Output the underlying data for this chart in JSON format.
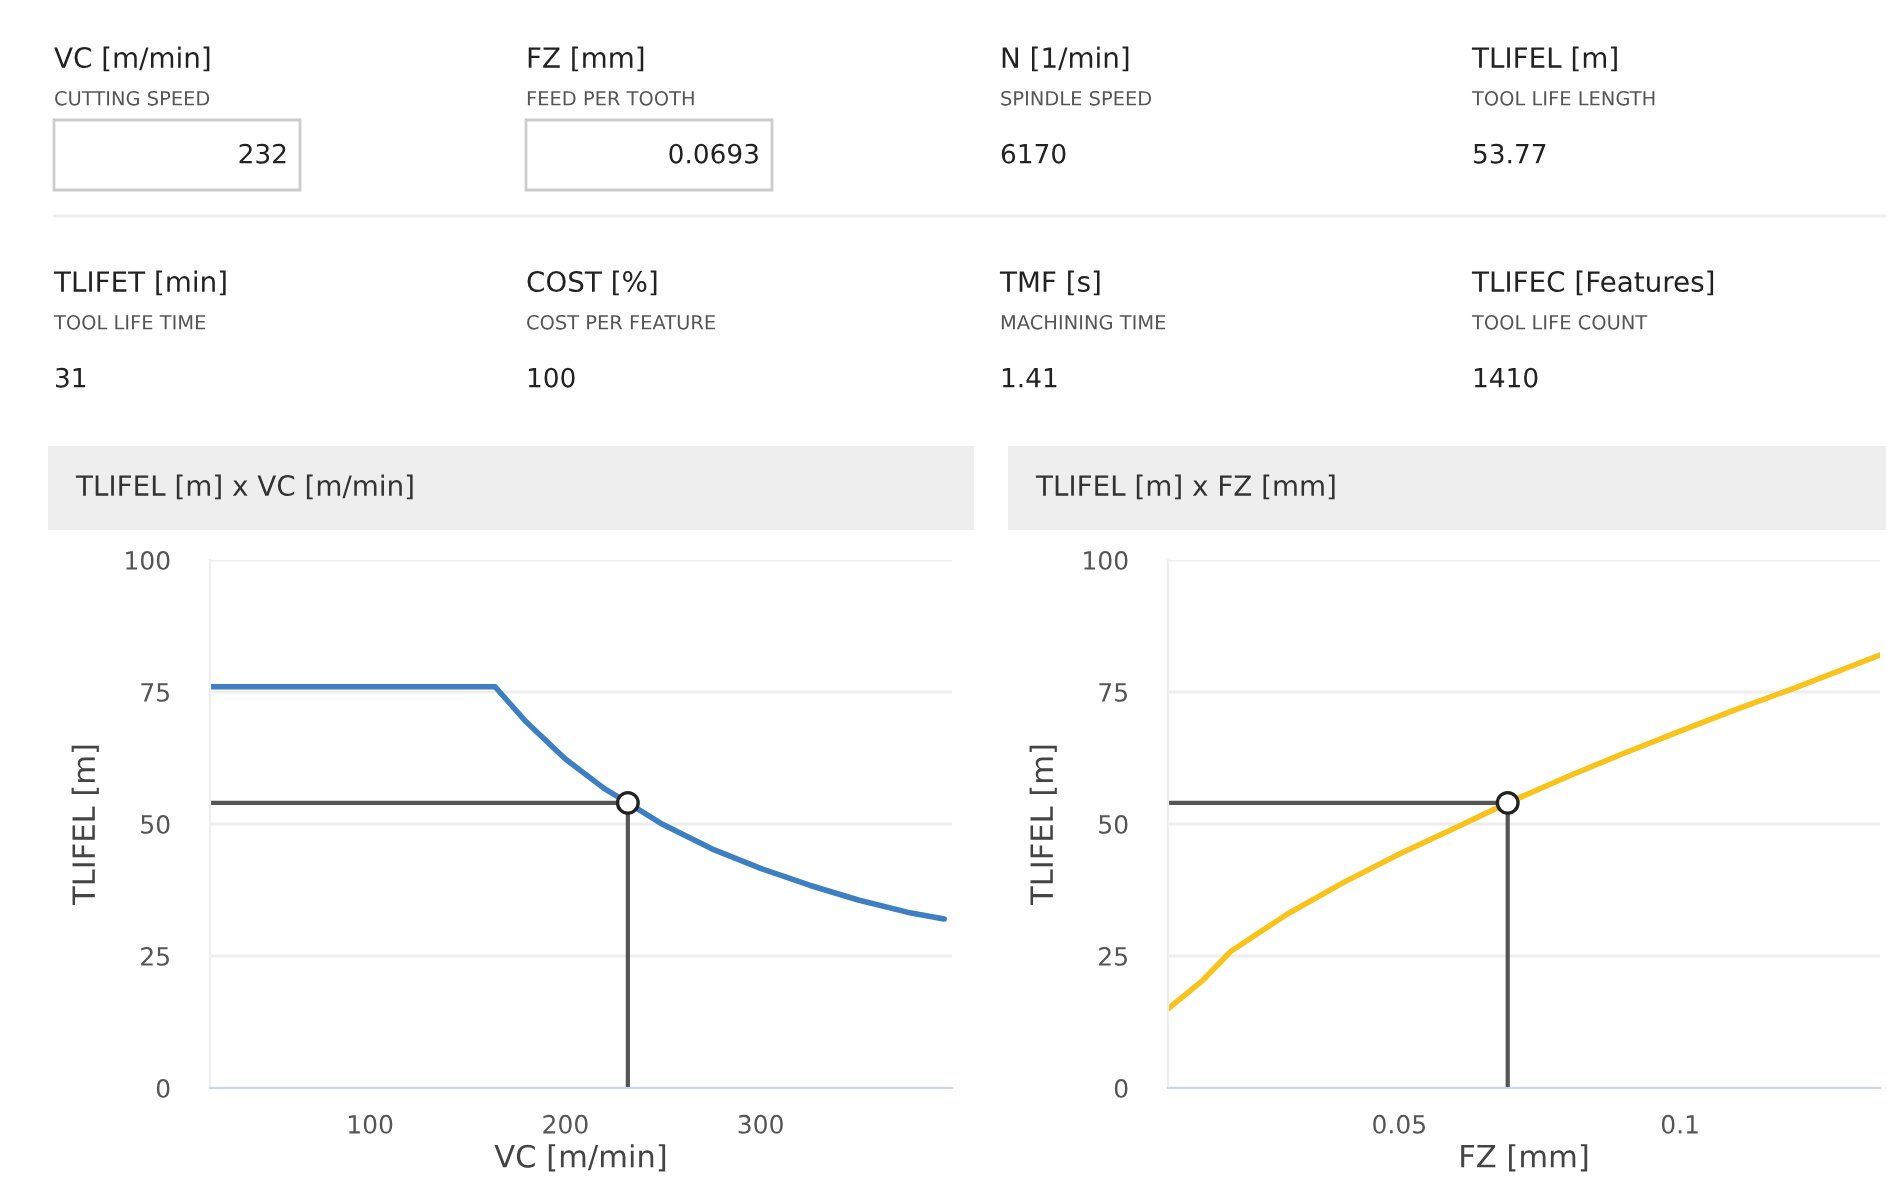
{
  "chart_data": [
    {
      "type": "other",
      "annotations": [
        "VC [m/min]",
        "CUTTING SPEED",
        "232",
        "FZ [mm]",
        "FEED PER TOOTH",
        "0.0693",
        "N [1/min]",
        "SPINDLE SPEED",
        "6170",
        "TLIFEL [m]",
        "TOOL LIFE LENGTH",
        "53.77",
        "TLIFET [min]",
        "TOOL LIFE TIME",
        "31",
        "COST [%]",
        "COST PER FEATURE",
        "100",
        "TMF [s]",
        "MACHINING TIME",
        "1.41",
        "TLIFEC [Features]",
        "TOOL LIFE COUNT",
        "1410"
      ]
    },
    {
      "type": "line",
      "title": "TLIFEL [m] x VC [m/min]",
      "xlabel": "VC [m/min]",
      "ylabel": "TLIFEL [m]",
      "xlim": [
        18,
        398
      ],
      "xticks": [
        100,
        200,
        300
      ],
      "ylim": [
        0,
        100
      ],
      "yticks": [
        0,
        25,
        50,
        75,
        100
      ],
      "grid": "y",
      "legend": false,
      "series": [
        {
          "color": "#3d7fc1",
          "x": [
            18,
            60,
            100,
            140,
            164,
            180,
            200,
            220,
            232,
            250,
            275,
            300,
            325,
            350,
            375,
            394
          ],
          "values": [
            76,
            76,
            76,
            76,
            76,
            69.3,
            62.3,
            56.7,
            54,
            49.9,
            45.3,
            41.6,
            38.4,
            35.6,
            33.3,
            32
          ]
        },
        {
          "type": "line",
          "color": "#555555",
          "x": [
            18,
            232,
            232
          ],
          "values": [
            54,
            54,
            0
          ]
        },
        {
          "type": "scatter",
          "color": "#ffffff",
          "x": [
            232
          ],
          "values": [
            54
          ]
        }
      ]
    },
    {
      "type": "line",
      "title": "TLIFEL [m] x FZ [mm]",
      "xlabel": "FZ [mm]",
      "ylabel": "TLIFEL [m]",
      "xlim": [
        0.0088,
        0.1356
      ],
      "xticks": [
        0.05,
        0.1
      ],
      "ylim": [
        0,
        100
      ],
      "yticks": [
        0,
        25,
        50,
        75,
        100
      ],
      "grid": "y",
      "legend": false,
      "series": [
        {
          "color": "#f7c31c",
          "x": [
            0.0088,
            0.015,
            0.02,
            0.03,
            0.04,
            0.05,
            0.06,
            0.0693,
            0.08,
            0.09,
            0.1,
            0.11,
            0.12,
            0.1356
          ],
          "values": [
            15,
            20.4,
            25.9,
            32.9,
            38.9,
            44.3,
            49.3,
            54,
            59,
            63.4,
            67.6,
            71.7,
            75.6,
            82
          ]
        },
        {
          "type": "line",
          "color": "#555555",
          "x": [
            0.0088,
            0.0693,
            0.0693
          ],
          "values": [
            54,
            54,
            0
          ]
        },
        {
          "type": "scatter",
          "color": "#ffffff",
          "x": [
            0.0693
          ],
          "values": [
            54
          ]
        }
      ]
    }
  ]
}
